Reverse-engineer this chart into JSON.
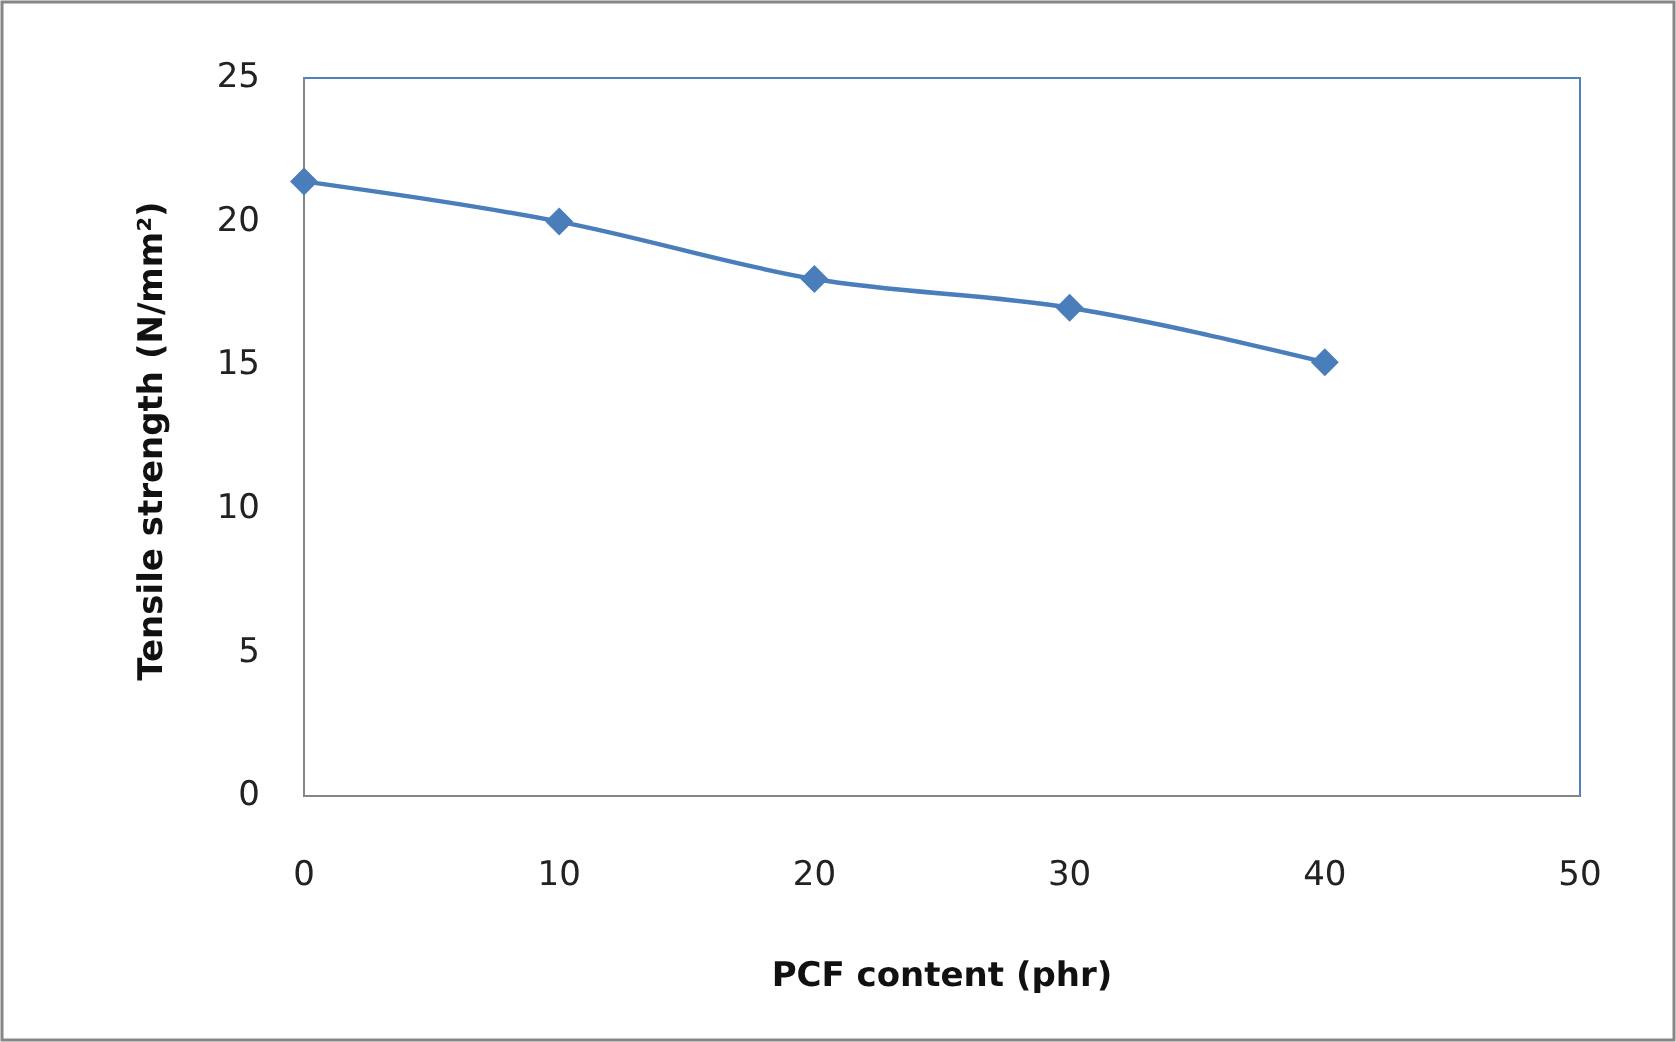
{
  "chart_data": {
    "type": "line",
    "xlabel": "PCF content (phr)",
    "ylabel": "Tensile strength (N/mm²)",
    "x": [
      0,
      10,
      20,
      30,
      40
    ],
    "series": [
      {
        "color": "#4a7ebb",
        "values": [
          21.4,
          20,
          18,
          17,
          15.1
        ]
      }
    ],
    "xlim": [
      0,
      50
    ],
    "xticks": [
      0,
      10,
      20,
      30,
      40,
      50
    ],
    "ylim": [
      0,
      25
    ],
    "yticks": [
      0,
      5,
      10,
      15,
      20,
      25
    ],
    "grid": false,
    "marker": "diamond",
    "line_style": "solid"
  }
}
